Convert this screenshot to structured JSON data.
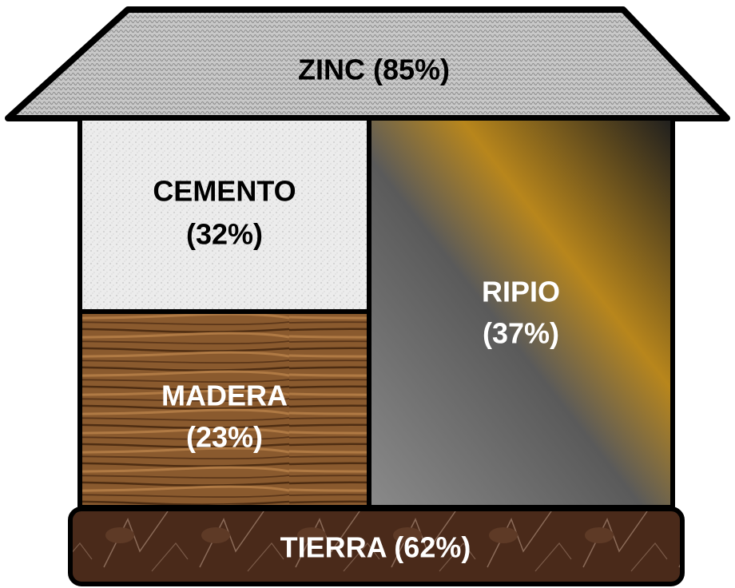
{
  "nodes": [
    {
      "lines": [
        "ZINC (85%)"
      ]
    },
    {
      "lines": [
        "CEMENTO",
        "(32%)"
      ]
    },
    {
      "lines": [
        "MADERA",
        "(23%)"
      ]
    },
    {
      "lines": [
        "RIPIO",
        "(37%)"
      ]
    },
    {
      "lines": [
        "TIERRA (62%)"
      ]
    }
  ]
}
